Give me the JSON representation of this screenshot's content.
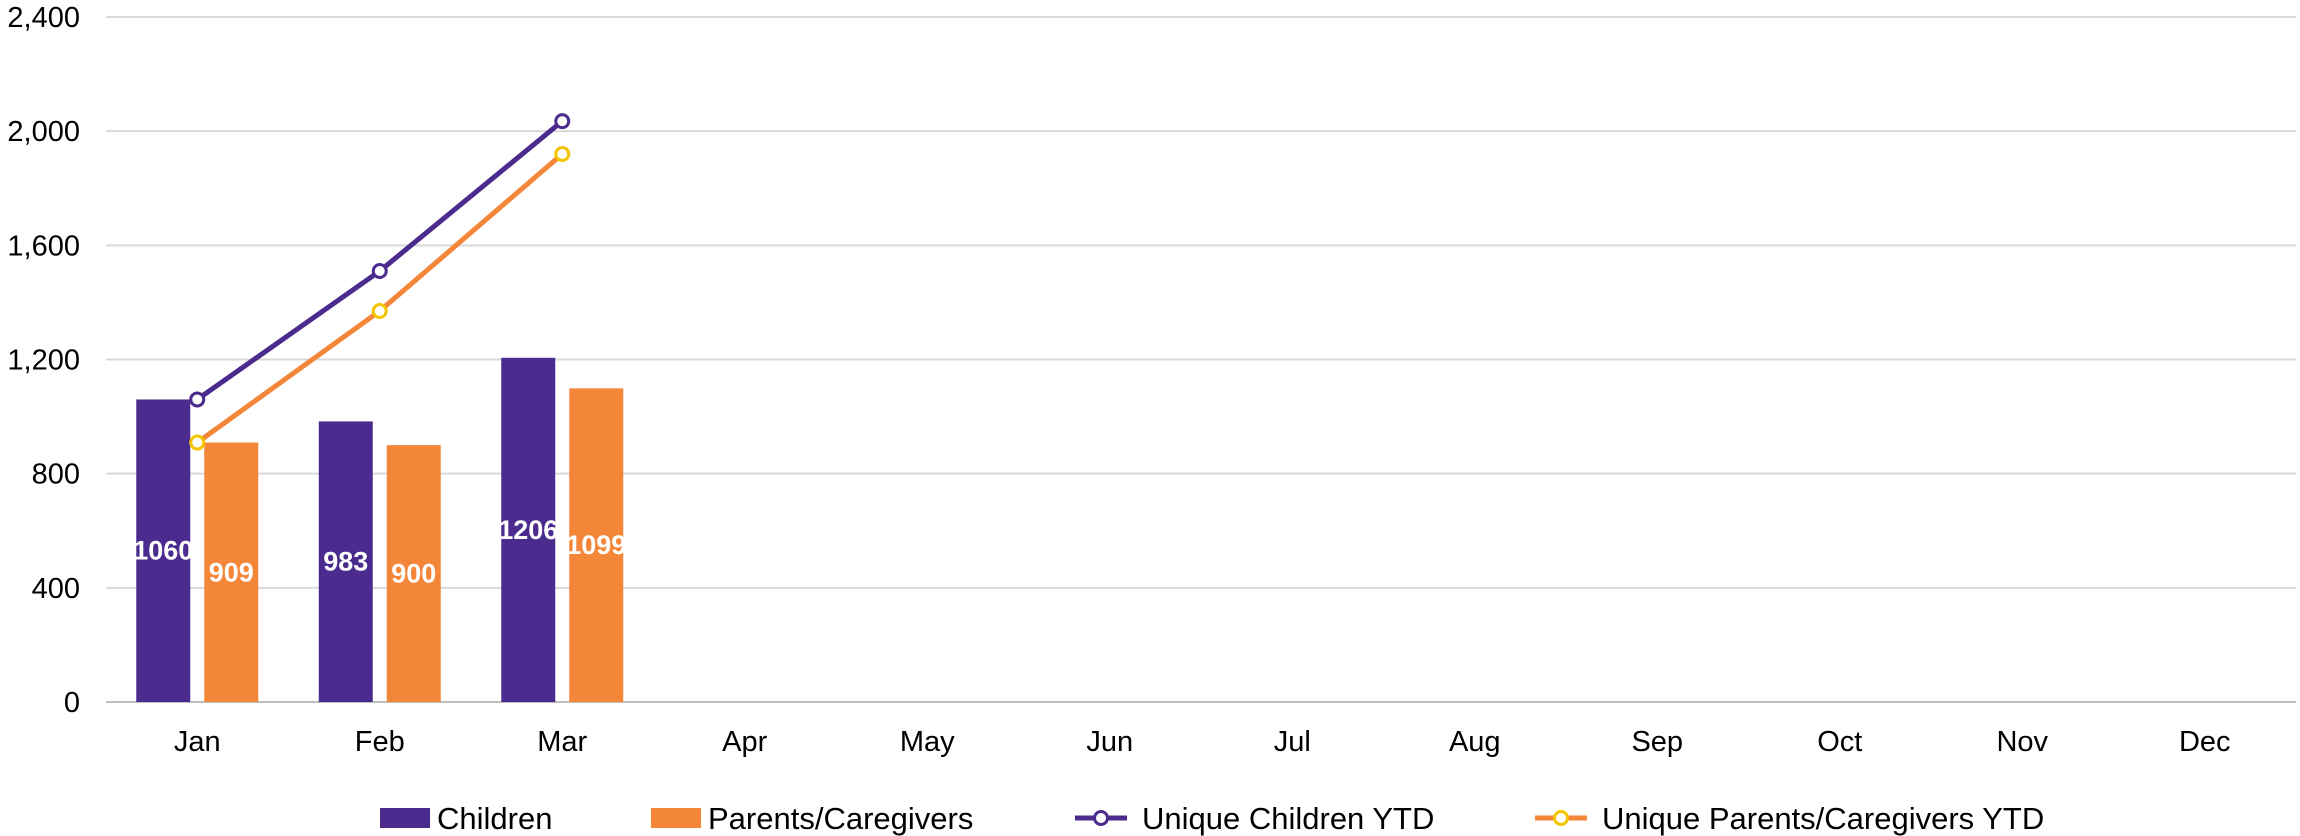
{
  "chart_data": {
    "type": "bar",
    "categories": [
      "Jan",
      "Feb",
      "Mar",
      "Apr",
      "May",
      "Jun",
      "Jul",
      "Aug",
      "Sep",
      "Oct",
      "Nov",
      "Dec"
    ],
    "ylim": [
      0,
      2400
    ],
    "yticks": [
      0,
      400,
      800,
      1200,
      1600,
      2000,
      2400
    ],
    "ytick_labels": [
      "0",
      "400",
      "800",
      "1,200",
      "1,600",
      "2,000",
      "2,400"
    ],
    "grid": true,
    "legend_position": "bottom",
    "series": [
      {
        "name": "Children",
        "kind": "bar",
        "color": "#4b2c8e",
        "values": [
          1060,
          983,
          1206,
          null,
          null,
          null,
          null,
          null,
          null,
          null,
          null,
          null
        ],
        "data_labels": [
          "1060",
          "983",
          "1206"
        ]
      },
      {
        "name": "Parents/Caregivers",
        "kind": "bar",
        "color": "#f4863a",
        "values": [
          909,
          900,
          1099,
          null,
          null,
          null,
          null,
          null,
          null,
          null,
          null,
          null
        ],
        "data_labels": [
          "909",
          "900",
          "1099"
        ]
      },
      {
        "name": "Unique Children YTD",
        "kind": "line",
        "color": "#4b2c8e",
        "marker_color": "#4b2c8e",
        "values": [
          1060,
          1510,
          2035,
          null,
          null,
          null,
          null,
          null,
          null,
          null,
          null,
          null
        ]
      },
      {
        "name": "Unique Parents/Caregivers YTD",
        "kind": "line",
        "color": "#f4863a",
        "marker_color": "#f5c400",
        "values": [
          909,
          1370,
          1920,
          null,
          null,
          null,
          null,
          null,
          null,
          null,
          null,
          null
        ]
      }
    ]
  }
}
